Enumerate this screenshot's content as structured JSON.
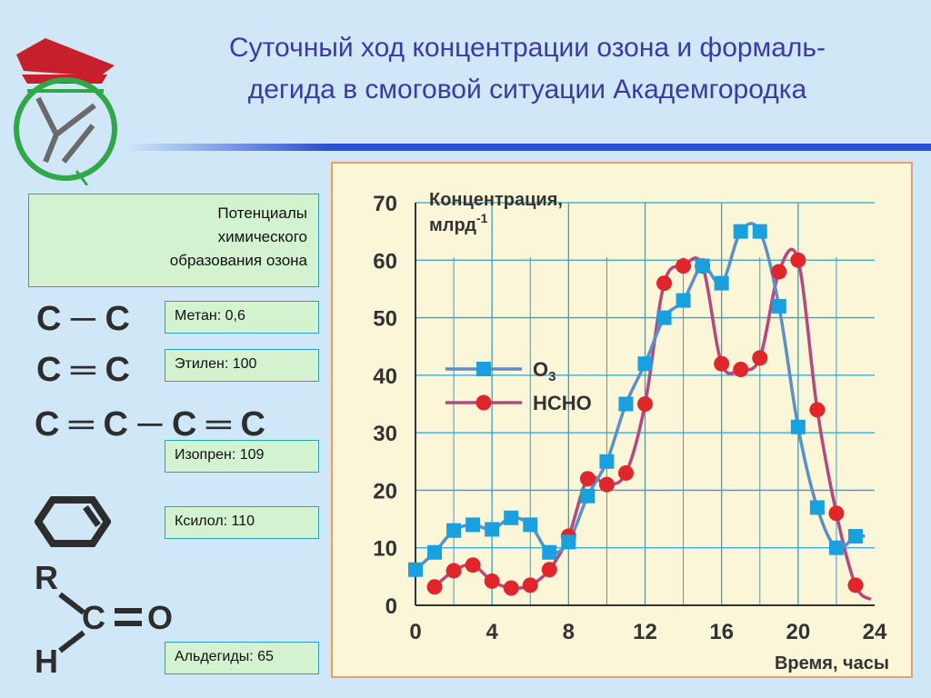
{
  "title": {
    "line1": "Суточный ход концентрации озона и формаль-",
    "line2": "дегида в смоговой ситуации Академгородка"
  },
  "potentials_heading": [
    "Потенциалы",
    "химического",
    "образования озона"
  ],
  "compounds": [
    {
      "formula": "C ─ C",
      "label": "Метан:   0,6"
    },
    {
      "formula": "C ═ C",
      "label": "Этилен: 100"
    },
    {
      "formula": "C ═ C ─ C ═ C",
      "label": "Изопрен: 109"
    },
    {
      "formula": "",
      "label": "Ксилол:   110"
    },
    {
      "formula": "",
      "label": "Альдегиды: 65"
    }
  ],
  "aldehyde_atoms": {
    "r": "R",
    "h": "H",
    "c": "C",
    "o": "O"
  },
  "colors": {
    "o3": "#5b8fc8",
    "o3_marker": "#19a0de",
    "hcho": "#b5487e",
    "hcho_marker": "#e0262b"
  },
  "chart_data": {
    "type": "line",
    "ylabel": "Концентрация, млрд",
    "ylabel_sup": "-1",
    "xlabel": "Время, часы",
    "xlim": [
      0,
      24
    ],
    "ylim": [
      0,
      70
    ],
    "xticks": [
      0,
      4,
      8,
      12,
      16,
      20,
      24
    ],
    "yticks": [
      0,
      10,
      20,
      30,
      40,
      50,
      60,
      70
    ],
    "grid": true,
    "legend_position": "left-middle",
    "series": [
      {
        "name": "O",
        "name_sub": "3",
        "x": [
          0,
          1,
          2,
          3,
          4,
          5,
          6,
          7,
          8,
          9,
          10,
          11,
          12,
          13,
          14,
          15,
          16,
          17,
          18,
          19,
          20,
          21,
          22,
          23
        ],
        "values": [
          6.2,
          9.2,
          13,
          14,
          13.2,
          15.2,
          14,
          9.2,
          11,
          19,
          25,
          35,
          42,
          50,
          53,
          59,
          56,
          65,
          65,
          52,
          31,
          17,
          10,
          12
        ]
      },
      {
        "name": "HCHO",
        "x": [
          1,
          2,
          3,
          4,
          5,
          6,
          7,
          8,
          9,
          10,
          11,
          12,
          13,
          14,
          15,
          16,
          17,
          18,
          19,
          20,
          21,
          22,
          23
        ],
        "values": [
          3.2,
          6,
          7,
          4.2,
          3,
          3.5,
          6.2,
          12,
          22,
          21,
          23,
          35,
          56,
          59,
          59,
          42,
          41,
          43,
          58,
          60,
          34,
          16,
          3.5
        ]
      }
    ]
  }
}
